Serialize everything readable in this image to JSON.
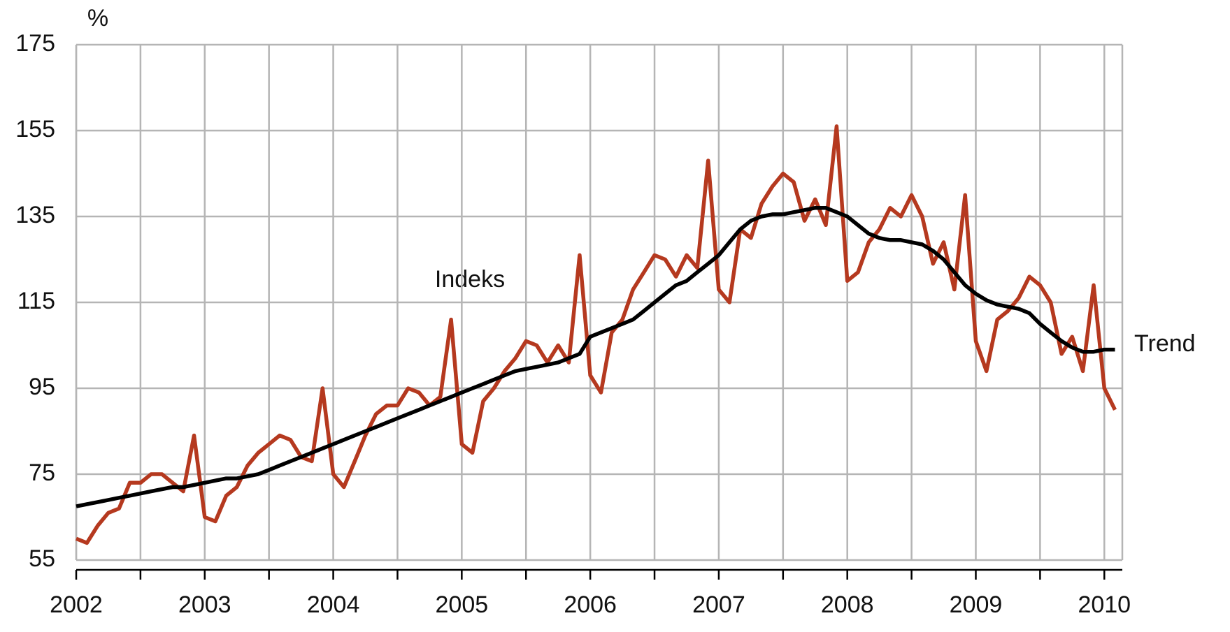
{
  "chart_data": {
    "type": "line",
    "ylabel": "%",
    "x": [
      2002,
      2002.083,
      2002.167,
      2002.25,
      2002.333,
      2002.417,
      2002.5,
      2002.583,
      2002.667,
      2002.75,
      2002.833,
      2002.917,
      2003,
      2003.083,
      2003.167,
      2003.25,
      2003.333,
      2003.417,
      2003.5,
      2003.583,
      2003.667,
      2003.75,
      2003.833,
      2003.917,
      2004,
      2004.083,
      2004.167,
      2004.25,
      2004.333,
      2004.417,
      2004.5,
      2004.583,
      2004.667,
      2004.75,
      2004.833,
      2004.917,
      2005,
      2005.083,
      2005.167,
      2005.25,
      2005.333,
      2005.417,
      2005.5,
      2005.583,
      2005.667,
      2005.75,
      2005.833,
      2005.917,
      2006,
      2006.083,
      2006.167,
      2006.25,
      2006.333,
      2006.417,
      2006.5,
      2006.583,
      2006.667,
      2006.75,
      2006.833,
      2006.917,
      2007,
      2007.083,
      2007.167,
      2007.25,
      2007.333,
      2007.417,
      2007.5,
      2007.583,
      2007.667,
      2007.75,
      2007.833,
      2007.917,
      2008,
      2008.083,
      2008.167,
      2008.25,
      2008.333,
      2008.417,
      2008.5,
      2008.583,
      2008.667,
      2008.75,
      2008.833,
      2008.917,
      2009,
      2009.083,
      2009.167,
      2009.25,
      2009.333,
      2009.417,
      2009.5,
      2009.583,
      2009.667,
      2009.75,
      2009.833,
      2009.917,
      2010,
      2010.083
    ],
    "series": [
      {
        "name": "Indeks",
        "color": "#b5391f",
        "values": [
          60,
          59,
          63,
          66,
          67,
          73,
          73,
          75,
          75,
          73,
          71,
          84,
          65,
          64,
          70,
          72,
          77,
          80,
          82,
          84,
          83,
          79,
          78,
          95,
          75,
          72,
          78,
          84,
          89,
          91,
          91,
          95,
          94,
          91,
          93,
          111,
          82,
          80,
          92,
          95,
          99,
          102,
          106,
          105,
          101,
          105,
          101,
          126,
          98,
          94,
          108,
          111,
          118,
          122,
          126,
          125,
          121,
          126,
          123,
          148,
          118,
          115,
          132,
          130,
          138,
          142,
          145,
          143,
          134,
          139,
          133,
          156,
          120,
          122,
          129,
          132,
          137,
          135,
          140,
          135,
          124,
          129,
          118,
          140,
          106,
          99,
          111,
          113,
          116,
          121,
          119,
          115,
          103,
          107,
          99,
          119,
          95,
          90
        ]
      },
      {
        "name": "Trend",
        "color": "#000000",
        "values": [
          67.5,
          68,
          68.5,
          69,
          69.5,
          70,
          70.5,
          71,
          71.5,
          72,
          72,
          72.5,
          73,
          73.5,
          74,
          74,
          74.5,
          75,
          76,
          77,
          78,
          79,
          80,
          81,
          82,
          83,
          84,
          85,
          86,
          87,
          88,
          89,
          90,
          91,
          92,
          93,
          94,
          95,
          96,
          97,
          98,
          99,
          99.5,
          100,
          100.5,
          101,
          102,
          103,
          107,
          108,
          109,
          110,
          111,
          113,
          115,
          117,
          119,
          120,
          122,
          124,
          126,
          129,
          132,
          134,
          135,
          135.5,
          135.5,
          136,
          136.5,
          137,
          137,
          136,
          135,
          133,
          131,
          130,
          129.5,
          129.5,
          129,
          128.5,
          127,
          125,
          122,
          119,
          117,
          115.5,
          114.5,
          114,
          113.5,
          112.5,
          110,
          108,
          106,
          104.5,
          103.5,
          103.5,
          104,
          104
        ]
      }
    ],
    "annotations": [
      {
        "text": "Indeks"
      },
      {
        "text": "Trend"
      }
    ],
    "xlim": [
      2002,
      2010.14
    ],
    "xticks": [
      2002,
      2003,
      2004,
      2005,
      2006,
      2007,
      2008,
      2009,
      2010
    ],
    "xminor": [
      2002.5,
      2003.5,
      2004.5,
      2005.5,
      2006.5,
      2007.5,
      2008.5,
      2009.5
    ],
    "ylim": [
      55,
      175
    ],
    "yticks": [
      55,
      75,
      95,
      115,
      135,
      155,
      175
    ],
    "grid": true
  }
}
